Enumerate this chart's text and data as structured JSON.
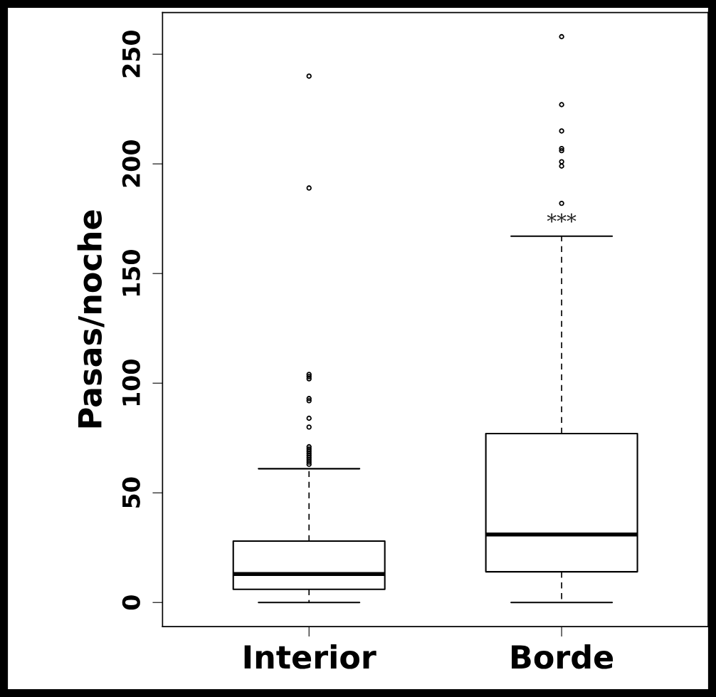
{
  "chart_data": {
    "type": "box",
    "ylabel": "Pasas/noche",
    "categories": [
      "Interior",
      "Borde"
    ],
    "boxes": [
      {
        "low": 0,
        "q1": 6,
        "median": 13,
        "q3": 28,
        "high": 61,
        "outliers": [
          63,
          64,
          65,
          66,
          67,
          68,
          69,
          70,
          71,
          80,
          84,
          92,
          93,
          102,
          103,
          104,
          189,
          240
        ]
      },
      {
        "low": 0,
        "q1": 14,
        "median": 31,
        "q3": 77,
        "high": 167,
        "outliers": [
          182,
          199,
          201,
          206,
          207,
          215,
          227,
          258
        ]
      }
    ],
    "ylim": [
      -11,
      269
    ],
    "yticks": [
      0,
      50,
      100,
      150,
      200,
      250
    ],
    "grid": false,
    "annotations": [
      "***"
    ]
  }
}
